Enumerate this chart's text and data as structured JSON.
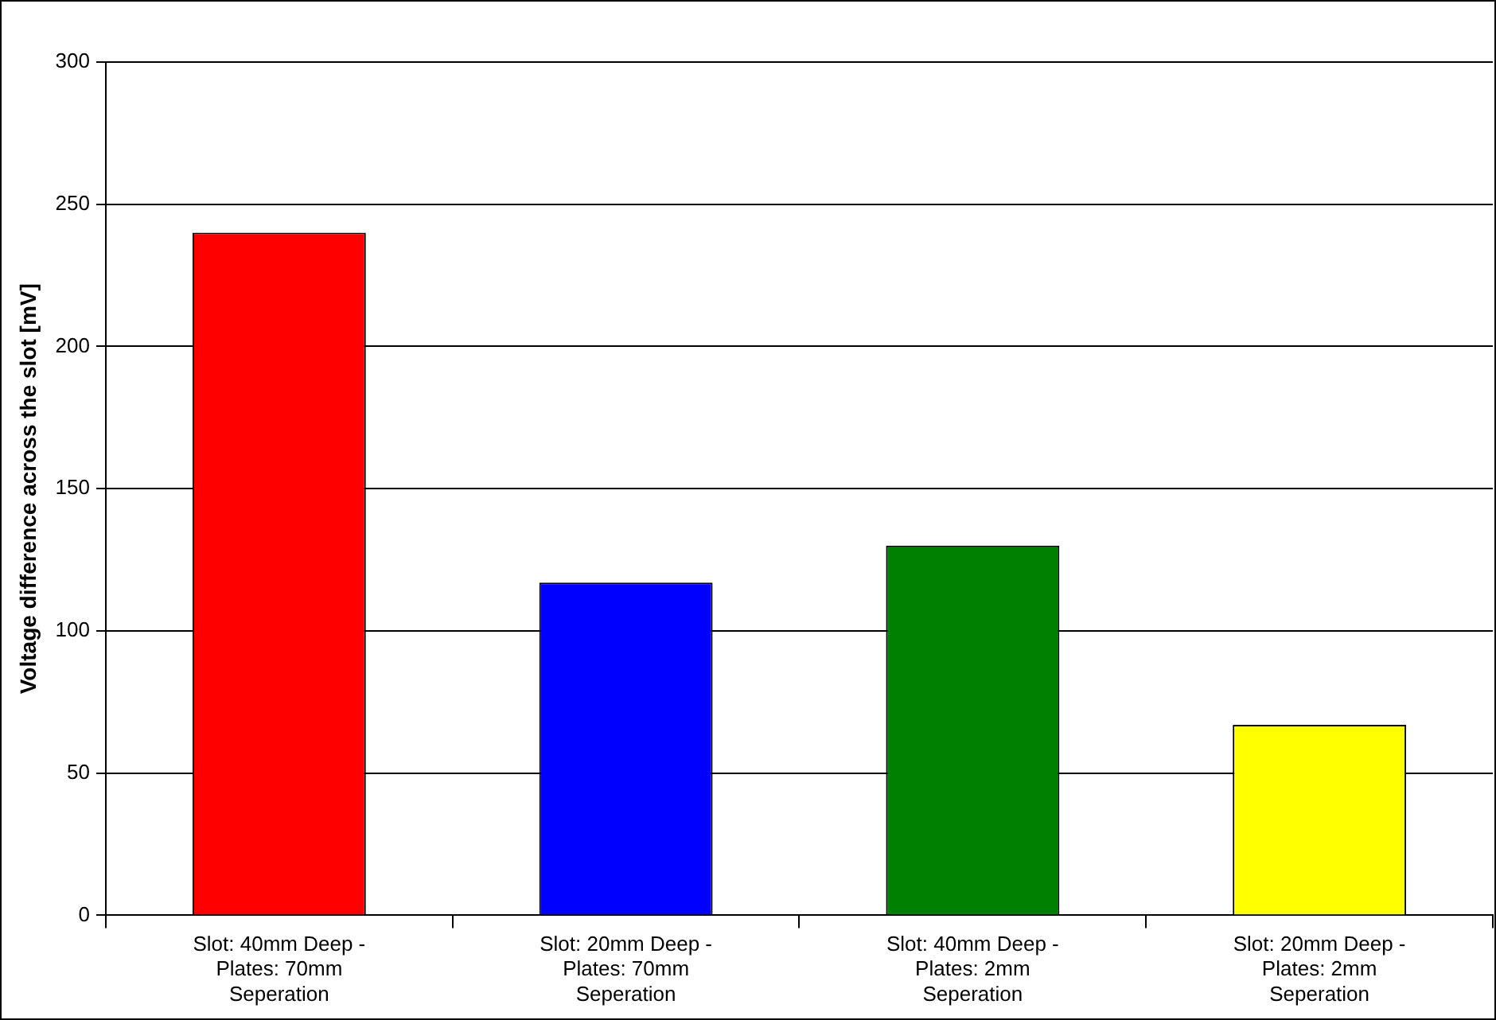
{
  "chart_data": {
    "type": "bar",
    "ylabel": "Voltage difference across the slot [mV]",
    "categories": [
      "Slot: 40mm Deep - Plates: 70mm Seperation",
      "Slot: 20mm Deep - Plates: 70mm Seperation",
      "Slot: 40mm Deep - Plates: 2mm Seperation",
      "Slot: 20mm Deep - Plates: 2mm Seperation"
    ],
    "values": [
      240,
      117,
      130,
      67
    ],
    "colors": [
      "#ff0000",
      "#0000ff",
      "#008000",
      "#ffff00"
    ],
    "ylim": [
      0,
      300
    ],
    "yticks": [
      0,
      50,
      100,
      150,
      200,
      250,
      300
    ],
    "grid": "y",
    "legend": false
  }
}
